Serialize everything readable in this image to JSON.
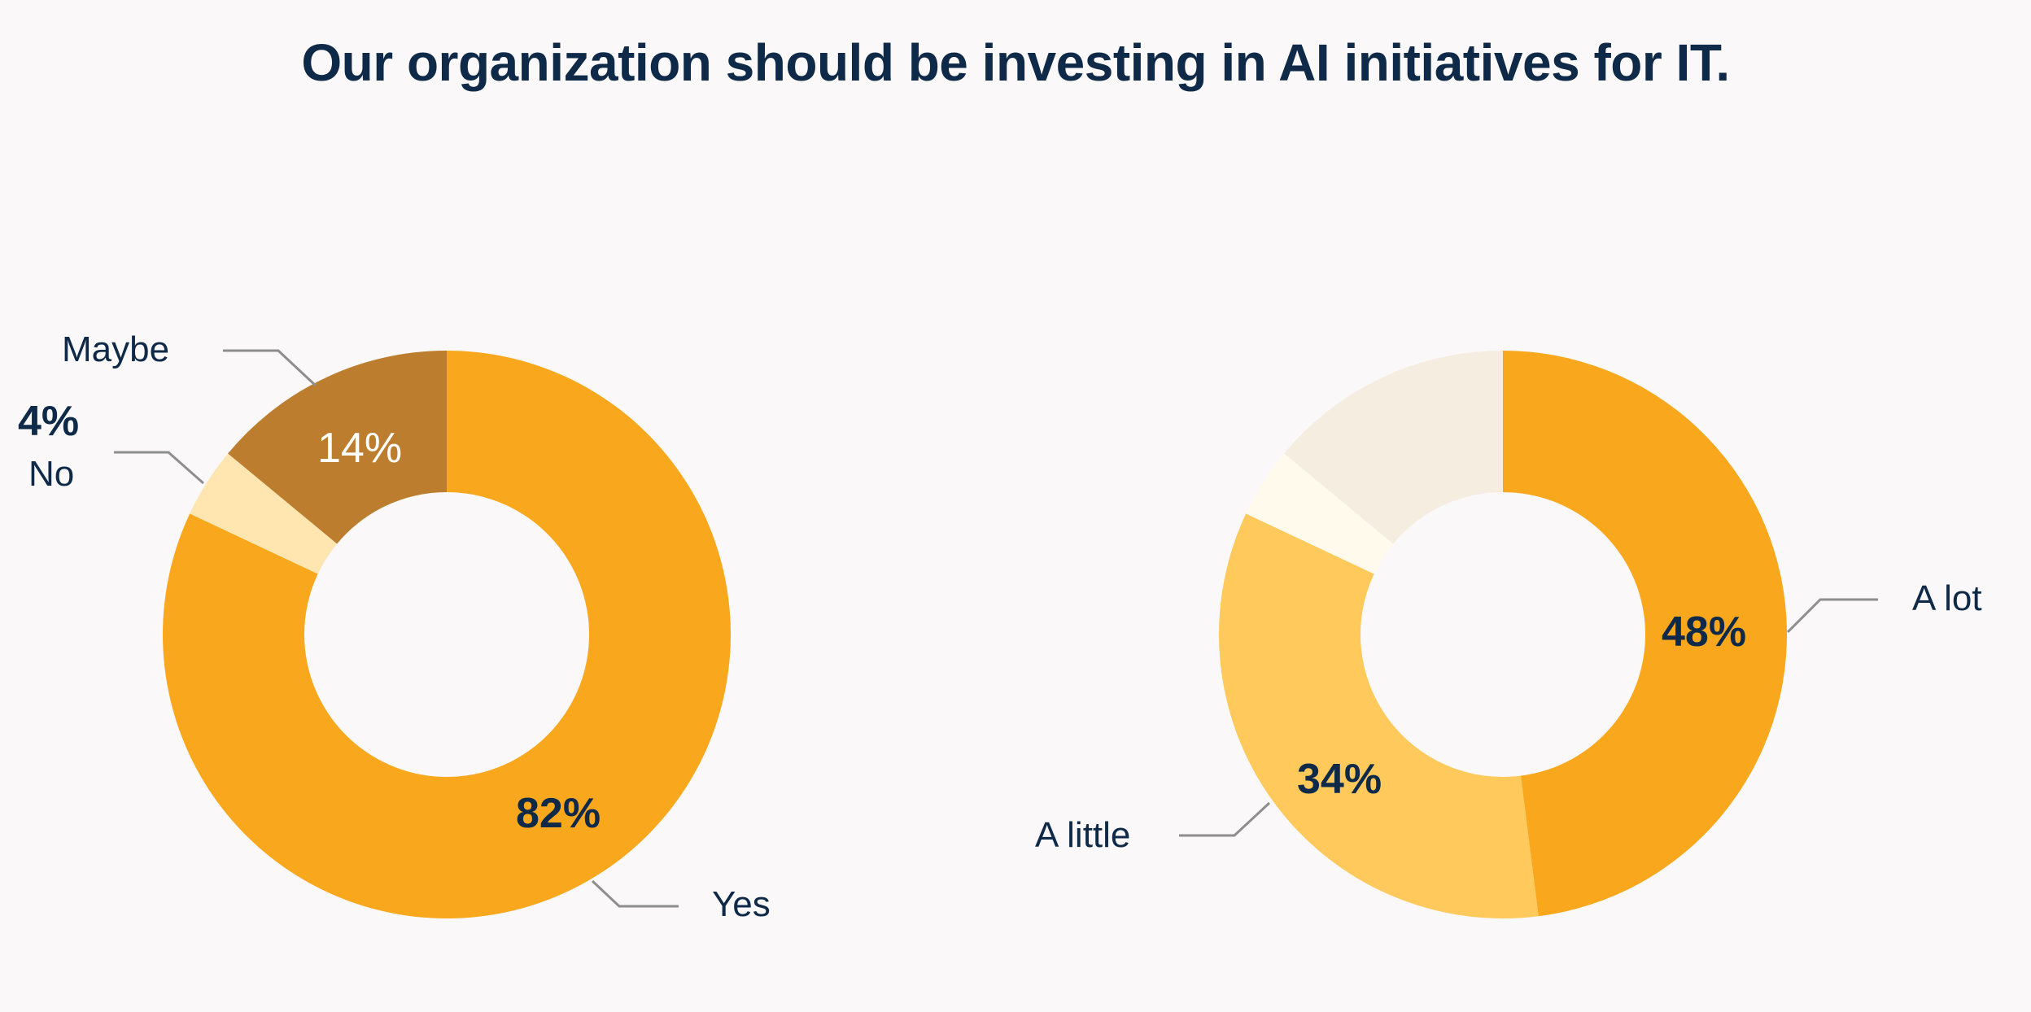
{
  "chart_data": [
    {
      "type": "pie",
      "title": "Our organization should be investing in AI initiatives for IT.",
      "donut": true,
      "slices": [
        {
          "label": "Yes",
          "value": 82,
          "value_label": "82%",
          "color": "#F9A81E"
        },
        {
          "label": "No",
          "value": 4,
          "value_label": "4%",
          "color": "#FFE5B0"
        },
        {
          "label": "Maybe",
          "value": 14,
          "value_label": "14%",
          "color": "#BC7E2E"
        }
      ]
    },
    {
      "type": "pie",
      "donut": true,
      "slices": [
        {
          "label": "A lot",
          "value": 48,
          "value_label": "48%",
          "color": "#F9A81E"
        },
        {
          "label": "A little",
          "value": 34,
          "value_label": "34%",
          "color": "#FFC95C"
        },
        {
          "label": "",
          "value": 4,
          "value_label": "",
          "color": "#FFFAEB"
        },
        {
          "label": "",
          "value": 14,
          "value_label": "",
          "color": "#F5EDE0"
        }
      ]
    }
  ],
  "colors": {
    "background": "#FAF8F8",
    "text": "#0F2A48",
    "leader_line": "#8E8E8E"
  }
}
